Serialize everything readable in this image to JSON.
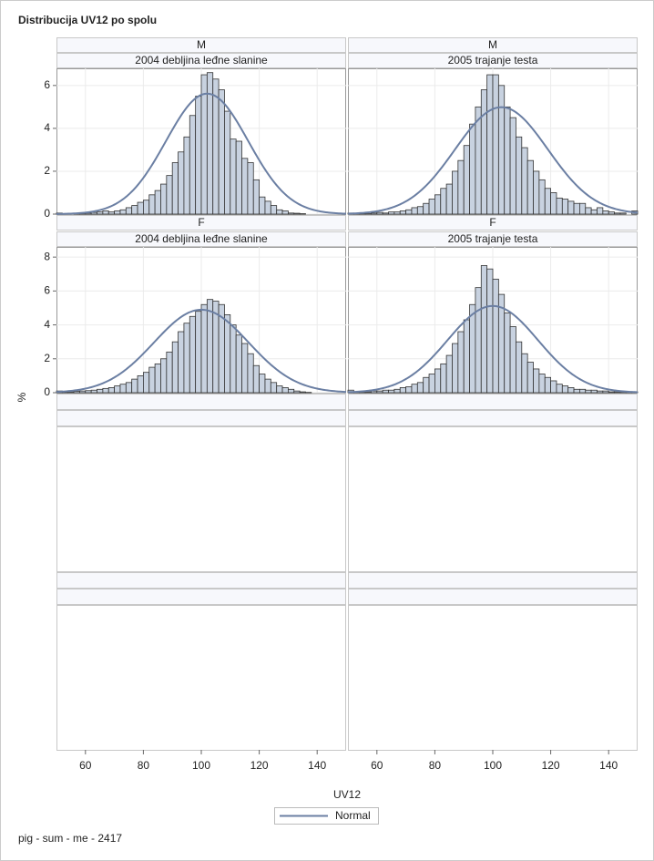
{
  "title": "Distribucija UV12 po spolu",
  "x_label": "UV12",
  "y_label": "%",
  "footnote": "pig - sum - me - 2417",
  "curve": {
    "name": "Normal",
    "color": "#6b7fa3"
  },
  "chart_data": [
    {
      "type": "histogram",
      "row_label": "M",
      "column_label": "2004 debljina leđne slanine",
      "color": "#c8d2e0",
      "bins": [
        50,
        52,
        54,
        56,
        58,
        60,
        62,
        64,
        66,
        68,
        70,
        72,
        74,
        76,
        78,
        80,
        82,
        84,
        86,
        88,
        90,
        92,
        94,
        96,
        98,
        100,
        102,
        104,
        106,
        108,
        110,
        112,
        114,
        116,
        118,
        120,
        122,
        124,
        126,
        128,
        130,
        132,
        134,
        136,
        138,
        140,
        142,
        144,
        146,
        148,
        150
      ],
      "values": [
        0.05,
        0,
        0,
        0.02,
        0.05,
        0.05,
        0.08,
        0.1,
        0.15,
        0.1,
        0.15,
        0.2,
        0.3,
        0.4,
        0.55,
        0.65,
        0.9,
        1.1,
        1.4,
        1.8,
        2.4,
        2.9,
        3.6,
        4.6,
        5.5,
        6.5,
        6.6,
        6.3,
        5.8,
        4.8,
        3.5,
        3.4,
        2.6,
        2.4,
        1.6,
        0.8,
        0.6,
        0.4,
        0.2,
        0.15,
        0.05,
        0.04,
        0.02,
        0,
        0,
        0,
        0,
        0,
        0,
        0
      ],
      "normal_mean": 102,
      "normal_sd": 14.2,
      "xlim": [
        50,
        150
      ],
      "xticks": [
        60,
        80,
        100,
        120,
        140
      ],
      "ylim": [
        0,
        6.8
      ],
      "yticks": [
        0,
        2,
        4,
        6
      ]
    },
    {
      "type": "histogram",
      "row_label": "M",
      "column_label": "2005 trajanje testa",
      "color": "#c8d2e0",
      "bins": [
        50,
        52,
        54,
        56,
        58,
        60,
        62,
        64,
        66,
        68,
        70,
        72,
        74,
        76,
        78,
        80,
        82,
        84,
        86,
        88,
        90,
        92,
        94,
        96,
        98,
        100,
        102,
        104,
        106,
        108,
        110,
        112,
        114,
        116,
        118,
        120,
        122,
        124,
        126,
        128,
        130,
        132,
        134,
        136,
        138,
        140,
        142,
        144,
        146,
        148,
        150
      ],
      "values": [
        0.05,
        0.03,
        0.02,
        0.02,
        0.05,
        0.08,
        0.05,
        0.1,
        0.1,
        0.15,
        0.2,
        0.3,
        0.35,
        0.5,
        0.7,
        0.9,
        1.2,
        1.4,
        2.0,
        2.5,
        3.2,
        4.2,
        5.0,
        5.8,
        6.5,
        6.5,
        6.0,
        5.0,
        4.5,
        3.6,
        3.1,
        2.5,
        2.0,
        1.6,
        1.2,
        1.0,
        0.75,
        0.7,
        0.6,
        0.5,
        0.5,
        0.3,
        0.2,
        0.3,
        0.15,
        0.1,
        0.05,
        0.05,
        0,
        0.15
      ],
      "normal_mean": 103,
      "normal_sd": 16,
      "xlim": [
        50,
        150
      ],
      "xticks": [
        60,
        80,
        100,
        120,
        140
      ],
      "ylim": [
        0,
        6.8
      ],
      "yticks": [
        0,
        2,
        4,
        6
      ]
    },
    {
      "type": "histogram",
      "row_label": "F",
      "column_label": "2004 debljina leđne slanine",
      "color": "#c8d2e0",
      "bins": [
        50,
        52,
        54,
        56,
        58,
        60,
        62,
        64,
        66,
        68,
        70,
        72,
        74,
        76,
        78,
        80,
        82,
        84,
        86,
        88,
        90,
        92,
        94,
        96,
        98,
        100,
        102,
        104,
        106,
        108,
        110,
        112,
        114,
        116,
        118,
        120,
        122,
        124,
        126,
        128,
        130,
        132,
        134,
        136,
        138,
        140,
        142,
        144,
        146,
        148,
        150
      ],
      "values": [
        0.1,
        0.02,
        0.05,
        0.08,
        0.1,
        0.12,
        0.15,
        0.2,
        0.25,
        0.3,
        0.4,
        0.5,
        0.6,
        0.8,
        1.0,
        1.2,
        1.5,
        1.7,
        2.0,
        2.4,
        3.0,
        3.6,
        4.1,
        4.5,
        4.8,
        5.2,
        5.5,
        5.4,
        5.2,
        4.6,
        4.0,
        3.4,
        2.9,
        2.3,
        1.6,
        1.1,
        0.8,
        0.6,
        0.4,
        0.3,
        0.2,
        0.1,
        0.05,
        0.02,
        0,
        0,
        0,
        0,
        0,
        0
      ],
      "normal_mean": 100,
      "normal_sd": 16.3,
      "xlim": [
        50,
        150
      ],
      "xticks": [
        60,
        80,
        100,
        120,
        140
      ],
      "ylim": [
        0,
        8.6
      ],
      "yticks": [
        0,
        2,
        4,
        6,
        8
      ]
    },
    {
      "type": "histogram",
      "row_label": "F",
      "column_label": "2005 trajanje testa",
      "color": "#c8d2e0",
      "bins": [
        50,
        52,
        54,
        56,
        58,
        60,
        62,
        64,
        66,
        68,
        70,
        72,
        74,
        76,
        78,
        80,
        82,
        84,
        86,
        88,
        90,
        92,
        94,
        96,
        98,
        100,
        102,
        104,
        106,
        108,
        110,
        112,
        114,
        116,
        118,
        120,
        122,
        124,
        126,
        128,
        130,
        132,
        134,
        136,
        138,
        140,
        142,
        144,
        146,
        148,
        150
      ],
      "values": [
        0.15,
        0.05,
        0.05,
        0.05,
        0.1,
        0.1,
        0.15,
        0.15,
        0.2,
        0.3,
        0.35,
        0.5,
        0.6,
        0.9,
        1.1,
        1.4,
        1.7,
        2.2,
        2.9,
        3.6,
        4.3,
        5.2,
        6.2,
        7.5,
        7.3,
        6.7,
        5.8,
        4.7,
        3.9,
        3.0,
        2.3,
        1.8,
        1.4,
        1.1,
        0.9,
        0.7,
        0.5,
        0.4,
        0.3,
        0.2,
        0.2,
        0.15,
        0.15,
        0.1,
        0.1,
        0.05,
        0.05,
        0.05,
        0.05,
        0.05
      ],
      "normal_mean": 100,
      "normal_sd": 15.6,
      "xlim": [
        50,
        150
      ],
      "xticks": [
        60,
        80,
        100,
        120,
        140
      ],
      "ylim": [
        0,
        8.6
      ],
      "yticks": [
        0,
        2,
        4,
        6,
        8
      ]
    }
  ]
}
